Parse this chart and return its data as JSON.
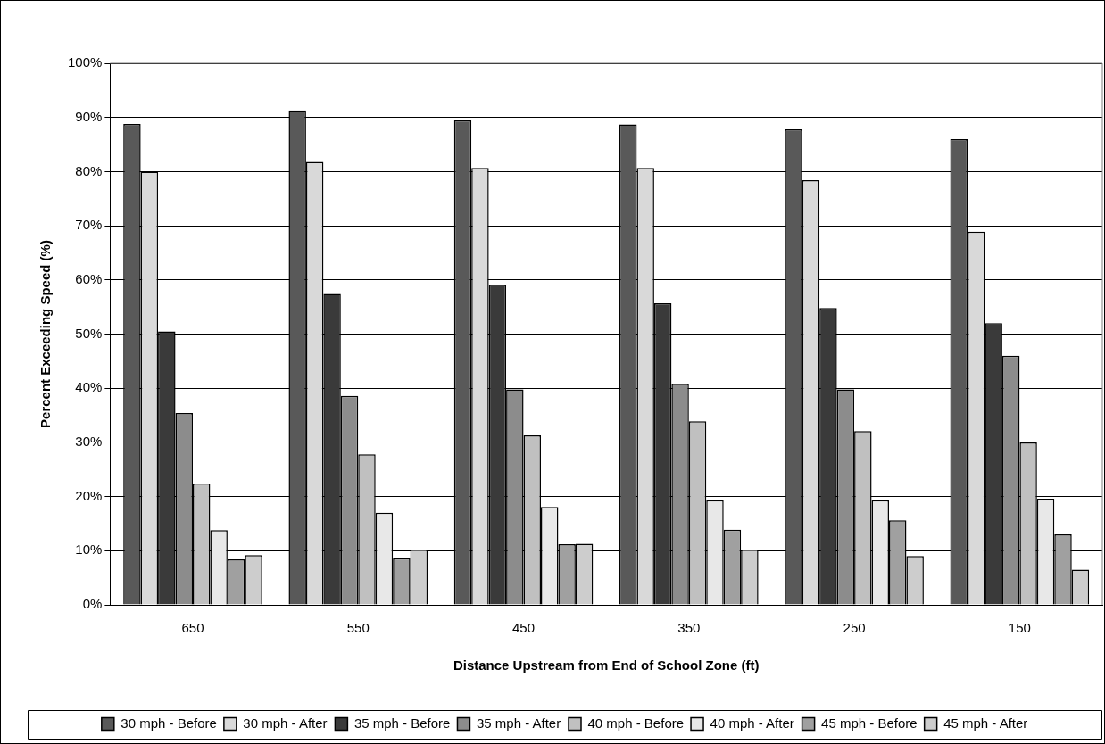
{
  "chart_data": {
    "type": "bar",
    "xlabel": "Distance Upstream from End of School Zone (ft)",
    "ylabel": "Percent Exceeding Speed (%)",
    "categories": [
      "650",
      "550",
      "450",
      "350",
      "250",
      "150"
    ],
    "series": [
      {
        "name": "30 mph - Before",
        "color": "#595959",
        "values": [
          88.8,
          91.3,
          89.5,
          88.7,
          87.8,
          86.0
        ]
      },
      {
        "name": "30 mph - After",
        "color": "#d9d9d9",
        "values": [
          80.0,
          81.8,
          80.7,
          80.7,
          78.4,
          68.9
        ]
      },
      {
        "name": "35 mph - Before",
        "color": "#3a3a3a",
        "values": [
          50.5,
          57.4,
          59.1,
          55.7,
          54.8,
          52.0
        ]
      },
      {
        "name": "35 mph - After",
        "color": "#8c8c8c",
        "values": [
          35.4,
          38.6,
          39.8,
          40.8,
          39.8,
          46.0
        ]
      },
      {
        "name": "40 mph - Before",
        "color": "#c0c0c0",
        "values": [
          22.4,
          27.8,
          31.3,
          33.9,
          32.1,
          30.0
        ]
      },
      {
        "name": "40 mph - After",
        "color": "#e8e8e8",
        "values": [
          13.8,
          17.0,
          18.1,
          19.3,
          19.3,
          19.6
        ]
      },
      {
        "name": "45 mph - Before",
        "color": "#a0a0a0",
        "values": [
          8.4,
          8.6,
          11.2,
          13.9,
          15.6,
          13.0
        ]
      },
      {
        "name": "45 mph - After",
        "color": "#cdcdcd",
        "values": [
          9.2,
          10.2,
          11.3,
          10.2,
          9.0,
          6.5
        ]
      }
    ],
    "ylim": [
      0,
      100
    ],
    "yticks": [
      {
        "value": 0,
        "label": "0%"
      },
      {
        "value": 10,
        "label": "10%"
      },
      {
        "value": 20,
        "label": "20%"
      },
      {
        "value": 30,
        "label": "30%"
      },
      {
        "value": 40,
        "label": "40%"
      },
      {
        "value": 50,
        "label": "50%"
      },
      {
        "value": 60,
        "label": "60%"
      },
      {
        "value": 70,
        "label": "70%"
      },
      {
        "value": 80,
        "label": "80%"
      },
      {
        "value": 90,
        "label": "90%"
      },
      {
        "value": 100,
        "label": "100%"
      }
    ],
    "grid": "y",
    "legend": "bottom"
  }
}
